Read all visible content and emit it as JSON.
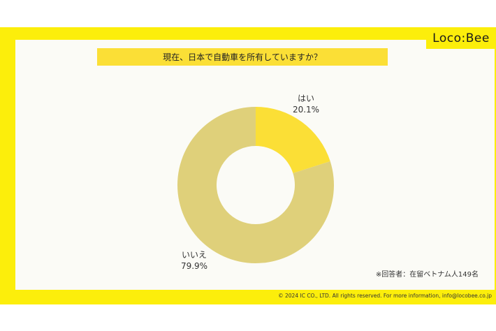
{
  "brand": {
    "logo_text": "Loco:Bee"
  },
  "header": {
    "question": "現在、日本で自動車を所有していますか？"
  },
  "chart_data": {
    "type": "pie",
    "donut": true,
    "title": "現在、日本で自動車を所有していますか？",
    "slices": [
      {
        "label": "はい",
        "value": 20.1,
        "value_text": "20.1%",
        "color": "#fbdf36"
      },
      {
        "label": "いいえ",
        "value": 79.9,
        "value_text": "79.9%",
        "color": "#dfd07a"
      }
    ]
  },
  "footer": {
    "respondents_note": "※回答者：在留ベトナム人149名",
    "copyright": "© 2024 IC CO., LTD. All rights reserved. For more information, info@locobee.co.jp"
  }
}
